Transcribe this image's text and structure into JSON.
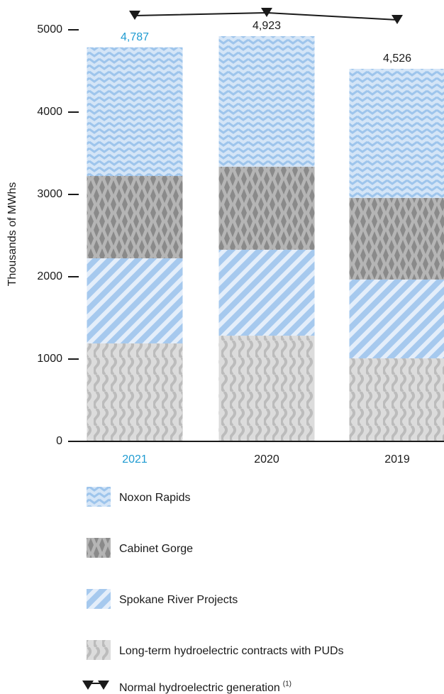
{
  "chart_data": {
    "type": "stacked-bar",
    "y_label": "Thousands of MWhs",
    "categories": [
      "2021",
      "2020",
      "2019"
    ],
    "highlight_index": 0,
    "highlight_color": "#1f9bd1",
    "ylim": [
      0,
      5300
    ],
    "yticks": [
      0,
      1000,
      2000,
      3000,
      4000,
      5000
    ],
    "series": [
      {
        "name": "Noxon Rapids",
        "color": "#9ec5ec",
        "back": "#d4e5f7",
        "pattern": "zigzag",
        "values": [
          1563,
          1587,
          1569
        ]
      },
      {
        "name": "Cabinet Gorge",
        "color": "#8a8a8a",
        "back": "#b5b5b5",
        "pattern": "diamonds",
        "values": [
          1000,
          1008,
          991
        ]
      },
      {
        "name": "Spokane River Projects",
        "color": "#a6c9ee",
        "back": "#e4eefa",
        "pattern": "stripes",
        "values": [
          1034,
          1044,
          957
        ]
      },
      {
        "name": "Long-term hydroelectric contracts with PUDs",
        "color": "#bcbcbc",
        "back": "#dcdcdc",
        "pattern": "waves",
        "values": [
          1190,
          1284,
          1009
        ]
      }
    ],
    "totals": {
      "values": [
        4787,
        4923,
        4526
      ],
      "value_labels": [
        "4,787",
        "4,923",
        "4,526"
      ]
    },
    "line": {
      "name": "Normal hydroelectric generation",
      "note": "(1)",
      "color": "#1a1a1a",
      "values": [
        5172,
        5207,
        5121
      ]
    }
  }
}
